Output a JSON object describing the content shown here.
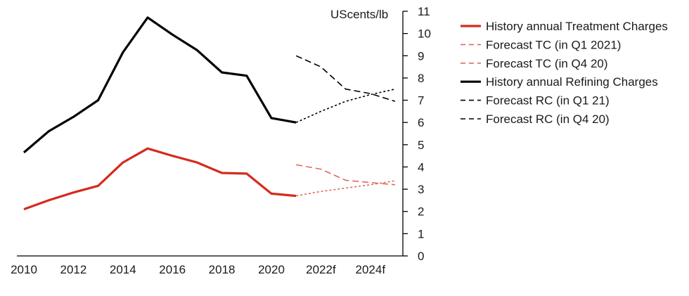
{
  "chart_data": {
    "type": "line",
    "title": "",
    "ylabel": "UScents/lb",
    "xlabel": "",
    "ylim": [
      0,
      11
    ],
    "yticks": [
      0,
      1,
      2,
      3,
      4,
      5,
      6,
      7,
      8,
      9,
      10,
      11
    ],
    "xlim": [
      2010,
      2025
    ],
    "xticks": [
      {
        "value": 2010,
        "label": "2010"
      },
      {
        "value": 2012,
        "label": "2012"
      },
      {
        "value": 2014,
        "label": "2014"
      },
      {
        "value": 2016,
        "label": "2016"
      },
      {
        "value": 2018,
        "label": "2018"
      },
      {
        "value": 2020,
        "label": "2020"
      },
      {
        "value": 2022,
        "label": "2022f"
      },
      {
        "value": 2024,
        "label": "2024f"
      }
    ],
    "legend_position": "right",
    "series": [
      {
        "name": "History annual Treatment Charges",
        "color": "#d52b1e",
        "style": "solid",
        "x": [
          2010,
          2011,
          2012,
          2013,
          2014,
          2015,
          2016,
          2017,
          2018,
          2019,
          2020,
          2021
        ],
        "values": [
          2.1,
          2.5,
          2.85,
          3.15,
          4.2,
          4.83,
          4.5,
          4.2,
          3.73,
          3.7,
          2.8,
          2.7
        ]
      },
      {
        "name": "Forecast TC (in Q1 2021)",
        "color": "#e06a5c",
        "style": "dotted",
        "x": [
          2021,
          2022,
          2023,
          2024,
          2025
        ],
        "values": [
          2.7,
          2.9,
          3.05,
          3.2,
          3.38
        ]
      },
      {
        "name": "Forecast TC (in Q4 20)",
        "color": "#e06a5c",
        "style": "dashed",
        "x": [
          2021,
          2022,
          2023,
          2024,
          2025
        ],
        "values": [
          4.1,
          3.9,
          3.4,
          3.3,
          3.2
        ]
      },
      {
        "name": "History annual Refining Charges",
        "color": "#000000",
        "style": "solid",
        "x": [
          2010,
          2011,
          2012,
          2013,
          2014,
          2015,
          2016,
          2017,
          2018,
          2019,
          2020,
          2021
        ],
        "values": [
          4.65,
          5.6,
          6.25,
          7.0,
          9.15,
          10.72,
          9.95,
          9.25,
          8.25,
          8.1,
          6.2,
          6.0
        ]
      },
      {
        "name": "Forecast RC (in Q1 21)",
        "color": "#000000",
        "style": "dotted",
        "x": [
          2021,
          2022,
          2023,
          2024,
          2025
        ],
        "values": [
          6.0,
          6.5,
          6.95,
          7.25,
          7.5
        ]
      },
      {
        "name": "Forecast RC (in Q4 20)",
        "color": "#000000",
        "style": "dashed",
        "x": [
          2021,
          2022,
          2023,
          2024,
          2025
        ],
        "values": [
          9.0,
          8.5,
          7.5,
          7.3,
          6.95
        ]
      }
    ]
  }
}
